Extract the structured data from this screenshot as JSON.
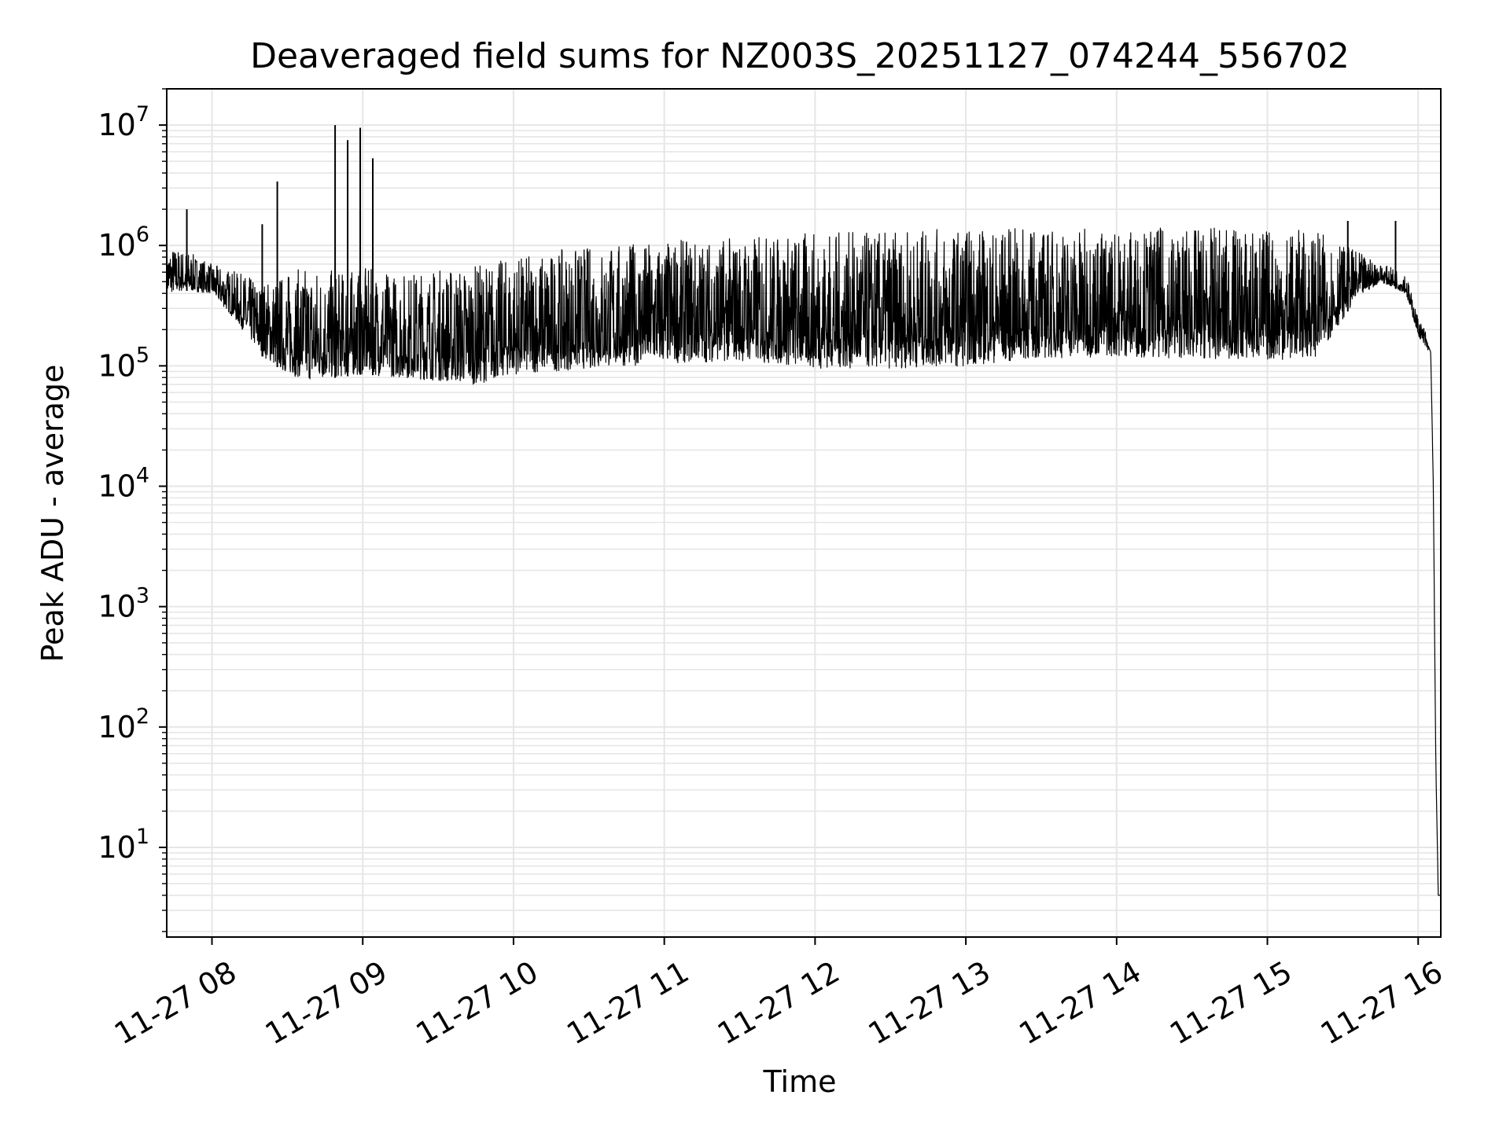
{
  "chart_data": {
    "type": "line",
    "title": "Deaveraged field sums for NZ003S_20251127_074244_556702",
    "xlabel": "Time",
    "ylabel": "Peak ADU - average",
    "yscale": "log",
    "ylim": [
      1.8,
      20000000
    ],
    "xlim": [
      "2025-11-27 07:42",
      "2025-11-27 16:09"
    ],
    "grid": true,
    "line_color": "#000000",
    "grid_color": "#e6e6e6",
    "x_ticks": [
      "11-27 08",
      "11-27 09",
      "11-27 10",
      "11-27 11",
      "11-27 12",
      "11-27 13",
      "11-27 14",
      "11-27 15",
      "11-27 16"
    ],
    "x_tick_values": [
      "2025-11-27 08:00",
      "2025-11-27 09:00",
      "2025-11-27 10:00",
      "2025-11-27 11:00",
      "2025-11-27 12:00",
      "2025-11-27 13:00",
      "2025-11-27 14:00",
      "2025-11-27 15:00",
      "2025-11-27 16:00"
    ],
    "y_ticks": [
      {
        "base": "10",
        "exp": "1",
        "value": 10
      },
      {
        "base": "10",
        "exp": "2",
        "value": 100
      },
      {
        "base": "10",
        "exp": "3",
        "value": 1000
      },
      {
        "base": "10",
        "exp": "4",
        "value": 10000
      },
      {
        "base": "10",
        "exp": "5",
        "value": 100000
      },
      {
        "base": "10",
        "exp": "6",
        "value": 1000000
      },
      {
        "base": "10",
        "exp": "7",
        "value": 10000000
      }
    ],
    "series": [
      {
        "x": [
          "2025-11-27 07:42",
          "2025-11-27 07:50",
          "2025-11-27 08:00",
          "2025-11-27 08:10",
          "2025-11-27 08:20",
          "2025-11-27 08:30",
          "2025-11-27 08:40",
          "2025-11-27 08:50",
          "2025-11-27 09:00",
          "2025-11-27 09:15",
          "2025-11-27 09:30",
          "2025-11-27 09:45",
          "2025-11-27 10:00",
          "2025-11-27 10:30",
          "2025-11-27 11:00",
          "2025-11-27 11:30",
          "2025-11-27 12:00",
          "2025-11-27 12:30",
          "2025-11-27 13:00",
          "2025-11-27 13:30",
          "2025-11-27 14:00",
          "2025-11-27 14:30",
          "2025-11-27 15:00",
          "2025-11-27 15:20",
          "2025-11-27 15:35",
          "2025-11-27 15:45",
          "2025-11-27 15:55",
          "2025-11-27 16:00",
          "2025-11-27 16:03",
          "2025-11-27 16:05",
          "2025-11-27 16:06",
          "2025-11-27 16:07",
          "2025-11-27 16:08"
        ],
        "low": [
          400000,
          420000,
          400000,
          230000,
          120000,
          85000,
          75000,
          80000,
          85000,
          80000,
          75000,
          70000,
          85000,
          95000,
          105000,
          110000,
          95000,
          95000,
          100000,
          115000,
          120000,
          115000,
          110000,
          120000,
          350000,
          500000,
          400000,
          180000,
          140000,
          120000,
          10000,
          50,
          4
        ],
        "high": [
          1000000,
          900000,
          700000,
          600000,
          500000,
          600000,
          700000,
          600000,
          650000,
          600000,
          650000,
          700000,
          800000,
          1000000,
          1100000,
          1200000,
          1300000,
          1300000,
          1400000,
          1400000,
          1400000,
          1400000,
          1400000,
          1300000,
          900000,
          700000,
          600000,
          250000,
          200000,
          140000,
          12000,
          60,
          4
        ]
      }
    ],
    "spikes": [
      {
        "x": "2025-11-27 07:50",
        "y": 2000000
      },
      {
        "x": "2025-11-27 08:20",
        "y": 1500000
      },
      {
        "x": "2025-11-27 08:26",
        "y": 3400000
      },
      {
        "x": "2025-11-27 08:49",
        "y": 10000000
      },
      {
        "x": "2025-11-27 08:54",
        "y": 7500000
      },
      {
        "x": "2025-11-27 08:59",
        "y": 9500000
      },
      {
        "x": "2025-11-27 09:04",
        "y": 5300000
      },
      {
        "x": "2025-11-27 15:32",
        "y": 1600000
      },
      {
        "x": "2025-11-27 15:51",
        "y": 1600000
      }
    ]
  }
}
